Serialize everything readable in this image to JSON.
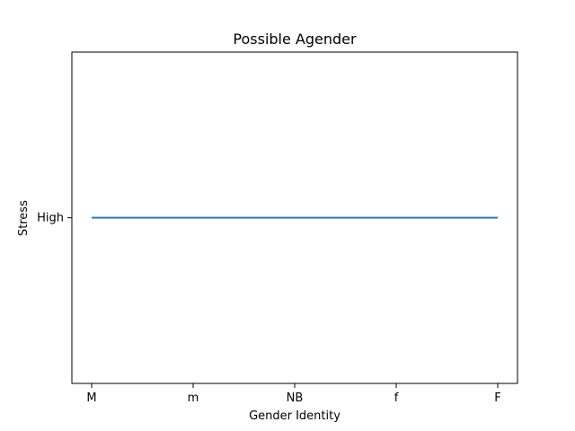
{
  "chart_data": {
    "type": "line",
    "title": "Possible Agender",
    "xlabel": "Gender Identity",
    "ylabel": "Stress",
    "categories": [
      "M",
      "m",
      "NB",
      "f",
      "F"
    ],
    "y_categories": [
      "High"
    ],
    "series": [
      {
        "values": [
          "High",
          "High",
          "High",
          "High",
          "High"
        ],
        "color": "#1f77b4"
      }
    ],
    "grid": false
  }
}
